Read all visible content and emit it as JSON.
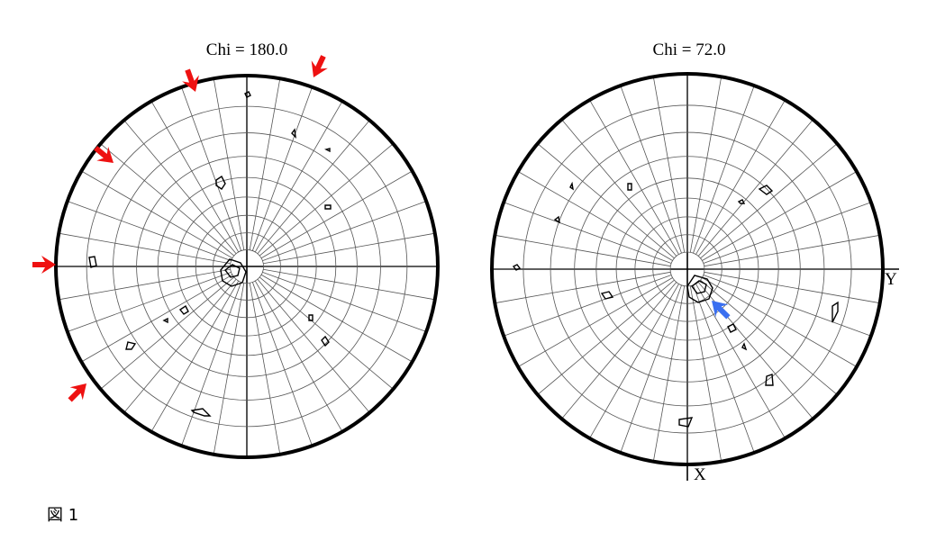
{
  "figures": [
    {
      "title": "Chi =  180.0"
    },
    {
      "title": "Chi =  72.0",
      "axis_labels": {
        "y": "Y",
        "x": "X"
      }
    }
  ],
  "caption": "図 1"
}
